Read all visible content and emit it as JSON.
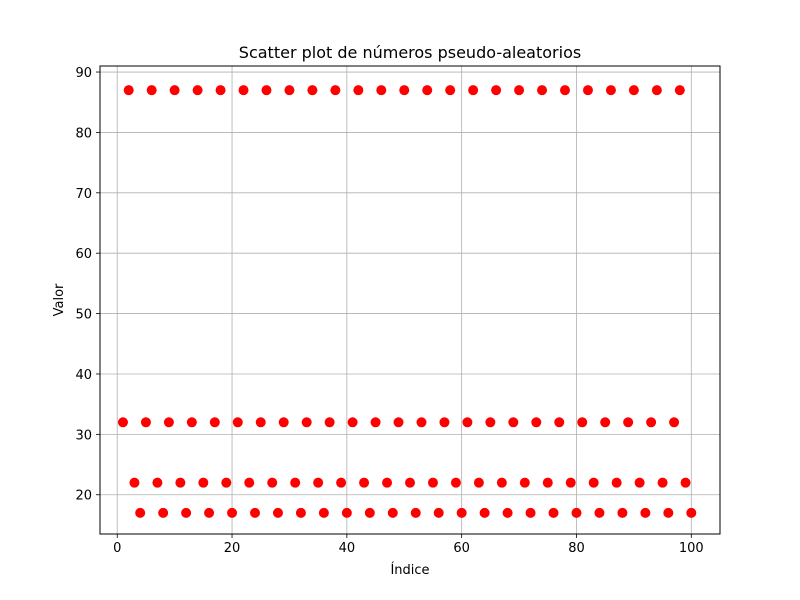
{
  "chart_data": {
    "type": "scatter",
    "title": "Scatter plot de números pseudo-aleatorios",
    "xlabel": "Índice",
    "ylabel": "Valor",
    "xlim": [
      -3,
      105
    ],
    "ylim": [
      13.5,
      91
    ],
    "xticks": [
      0,
      20,
      40,
      60,
      80,
      100
    ],
    "yticks": [
      20,
      30,
      40,
      50,
      60,
      70,
      80,
      90
    ],
    "grid": true,
    "marker_color": "#ff0000",
    "series": [
      {
        "x": [
          1,
          2,
          3,
          4,
          5,
          6,
          7,
          8,
          9,
          10,
          11,
          12,
          13,
          14,
          15,
          16,
          17,
          18,
          19,
          20,
          21,
          22,
          23,
          24,
          25,
          26,
          27,
          28,
          29,
          30,
          31,
          32,
          33,
          34,
          35,
          36,
          37,
          38,
          39,
          40,
          41,
          42,
          43,
          44,
          45,
          46,
          47,
          48,
          49,
          50,
          51,
          52,
          53,
          54,
          55,
          56,
          57,
          58,
          59,
          60,
          61,
          62,
          63,
          64,
          65,
          66,
          67,
          68,
          69,
          70,
          71,
          72,
          73,
          74,
          75,
          76,
          77,
          78,
          79,
          80,
          81,
          82,
          83,
          84,
          85,
          86,
          87,
          88,
          89,
          90,
          91,
          92,
          93,
          94,
          95,
          96,
          97,
          98,
          99,
          100
        ],
        "y": [
          32,
          87,
          22,
          17,
          32,
          87,
          22,
          17,
          32,
          87,
          22,
          17,
          32,
          87,
          22,
          17,
          32,
          87,
          22,
          17,
          32,
          87,
          22,
          17,
          32,
          87,
          22,
          17,
          32,
          87,
          22,
          17,
          32,
          87,
          22,
          17,
          32,
          87,
          22,
          17,
          32,
          87,
          22,
          17,
          32,
          87,
          22,
          17,
          32,
          87,
          22,
          17,
          32,
          87,
          22,
          17,
          32,
          87,
          22,
          17,
          32,
          87,
          22,
          17,
          32,
          87,
          22,
          17,
          32,
          87,
          22,
          17,
          32,
          87,
          22,
          17,
          32,
          87,
          22,
          17,
          32,
          87,
          22,
          17,
          32,
          87,
          22,
          17,
          32,
          87,
          22,
          17,
          32,
          87,
          22,
          17,
          32,
          87,
          22,
          17
        ]
      }
    ]
  }
}
